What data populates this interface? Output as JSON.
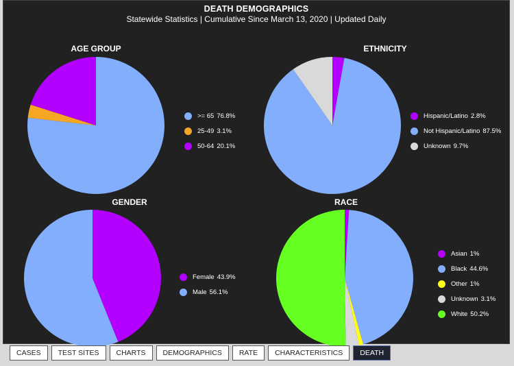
{
  "title": "DEATH DEMOGRAPHICS",
  "subtitle": "Statewide Statistics  |  Cumulative Since March 13, 2020  |  Updated Daily",
  "colors": {
    "background": "#212121",
    "light_blue": "#82aefc",
    "orange": "#f5a623",
    "purple": "#b400ff",
    "gray": "#d9d9d9",
    "yellow": "#ffff1a",
    "green": "#66ff22"
  },
  "chart_data": [
    {
      "id": "age",
      "type": "pie",
      "title": "AGE GROUP",
      "start_angle_deg": 0,
      "slices": [
        {
          "label": ">= 65",
          "value_text": "76.8%",
          "value": 76.8,
          "color": "#82aefc"
        },
        {
          "label": "25-49",
          "value_text": "3.1%",
          "value": 3.1,
          "color": "#f5a623"
        },
        {
          "label": "50-64",
          "value_text": "20.1%",
          "value": 20.1,
          "color": "#b400ff"
        }
      ]
    },
    {
      "id": "ethnicity",
      "type": "pie",
      "title": "ETHNICITY",
      "start_angle_deg": 0,
      "slices": [
        {
          "label": "Hispanic/Latino",
          "value_text": "2.8%",
          "value": 2.8,
          "color": "#b400ff"
        },
        {
          "label": "Not Hispanic/Latino",
          "value_text": "87.5%",
          "value": 87.5,
          "color": "#82aefc"
        },
        {
          "label": "Unknown",
          "value_text": "9.7%",
          "value": 9.7,
          "color": "#d9d9d9"
        }
      ]
    },
    {
      "id": "gender",
      "type": "pie",
      "title": "GENDER",
      "start_angle_deg": 0,
      "slices": [
        {
          "label": "Female",
          "value_text": "43.9%",
          "value": 43.9,
          "color": "#b400ff"
        },
        {
          "label": "Male",
          "value_text": "56.1%",
          "value": 56.1,
          "color": "#82aefc"
        }
      ]
    },
    {
      "id": "race",
      "type": "pie",
      "title": "RACE",
      "start_angle_deg": 0,
      "slices": [
        {
          "label": "Asian",
          "value_text": "1%",
          "value": 1,
          "color": "#b400ff"
        },
        {
          "label": "Black",
          "value_text": "44.6%",
          "value": 44.6,
          "color": "#82aefc"
        },
        {
          "label": "Other",
          "value_text": "1%",
          "value": 1,
          "color": "#ffff1a"
        },
        {
          "label": "Unknown",
          "value_text": "3.1%",
          "value": 3.1,
          "color": "#d9d9d9"
        },
        {
          "label": "White",
          "value_text": "50.2%",
          "value": 50.2,
          "color": "#66ff22"
        }
      ]
    }
  ],
  "tabs": [
    {
      "label": "CASES",
      "active": false
    },
    {
      "label": "TEST SITES",
      "active": false
    },
    {
      "label": "CHARTS",
      "active": false
    },
    {
      "label": "DEMOGRAPHICS",
      "active": false
    },
    {
      "label": "RATE",
      "active": false
    },
    {
      "label": "CHARACTERISTICS",
      "active": false
    },
    {
      "label": "DEATH",
      "active": true
    }
  ]
}
